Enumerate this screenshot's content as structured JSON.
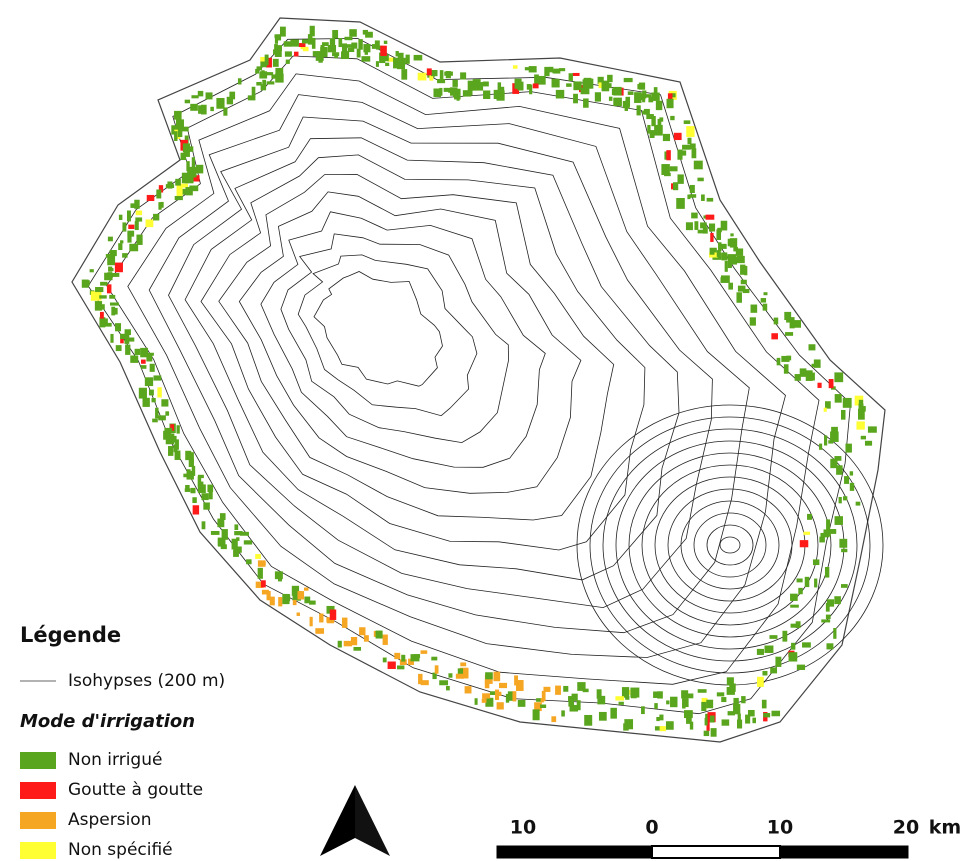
{
  "legend": {
    "title": "Légende",
    "contour_label": "Isohypses (200 m)",
    "group_title": "Mode d'irrigation",
    "items": [
      {
        "label": "Non irrigué",
        "color": "#5aa51e"
      },
      {
        "label": "Goutte à goutte",
        "color": "#ff1a1a"
      },
      {
        "label": "Aspersion",
        "color": "#f5a623"
      },
      {
        "label": "Non spécifié",
        "color": "#ffff33"
      }
    ]
  },
  "scale_bar": {
    "labels": [
      "10",
      "0",
      "10",
      "20"
    ],
    "unit": "km"
  }
}
